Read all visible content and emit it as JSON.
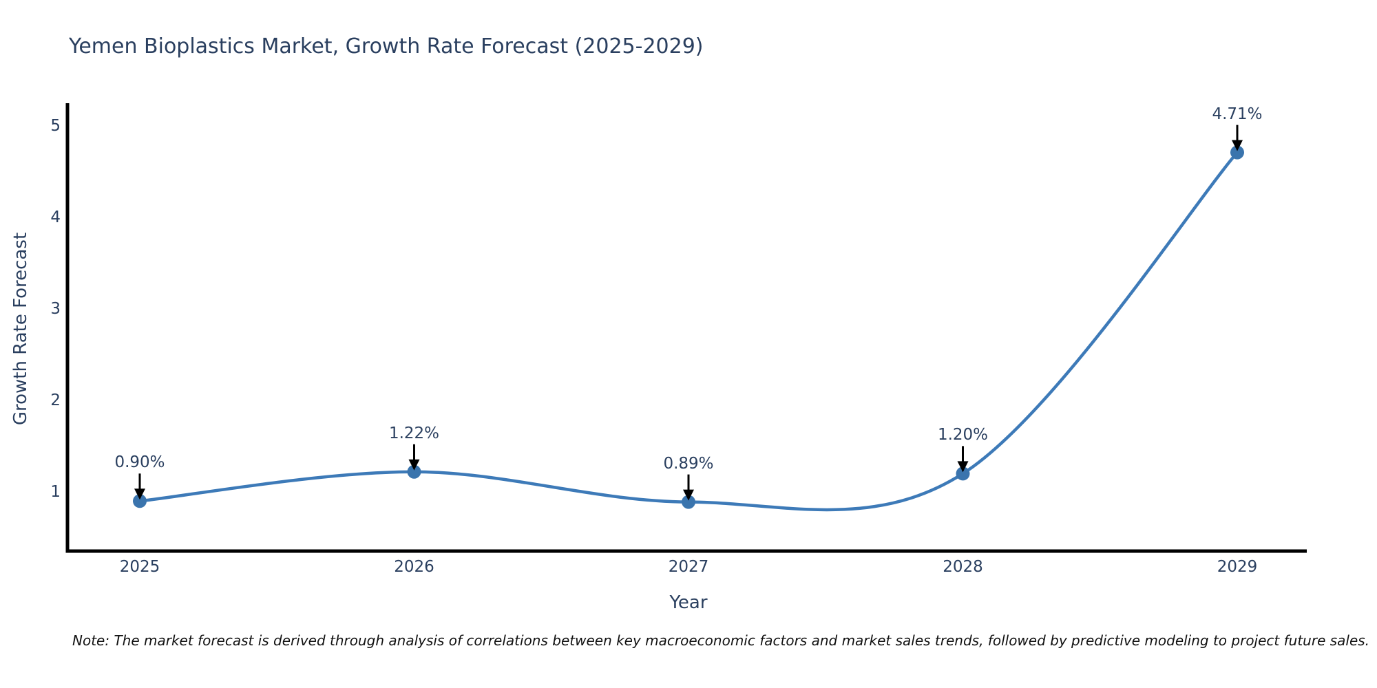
{
  "title": "Yemen Bioplastics Market, Growth Rate Forecast (2025-2029)",
  "note": "Note: The market forecast is derived through analysis of correlations between key macroeconomic factors and market sales trends, followed by predictive modeling to project future sales.",
  "colors": {
    "line": "#3d7ab8",
    "marker": "#3a74ad",
    "axis": "#000000",
    "text": "#2a3f5f",
    "arrow": "#000000",
    "note_text": "#111111",
    "background": "#ffffff"
  },
  "chart_data": {
    "type": "line",
    "line_shape": "spline",
    "marker": "circle",
    "categories": [
      "2025",
      "2026",
      "2027",
      "2028",
      "2029"
    ],
    "x": [
      2025,
      2026,
      2027,
      2028,
      2029
    ],
    "values": [
      0.9,
      1.22,
      0.89,
      1.2,
      4.71
    ],
    "point_labels": [
      "0.90%",
      "1.22%",
      "0.89%",
      "1.20%",
      "4.71%"
    ],
    "title": "Yemen Bioplastics Market, Growth Rate Forecast (2025-2029)",
    "xlabel": "Year",
    "ylabel": "Growth Rate Forecast",
    "y_ticks": [
      1,
      2,
      3,
      4,
      5
    ],
    "ylim": [
      0.35,
      5.25
    ],
    "xlim": [
      2024.74,
      2029.27
    ],
    "grid": false,
    "legend_position": "none"
  }
}
